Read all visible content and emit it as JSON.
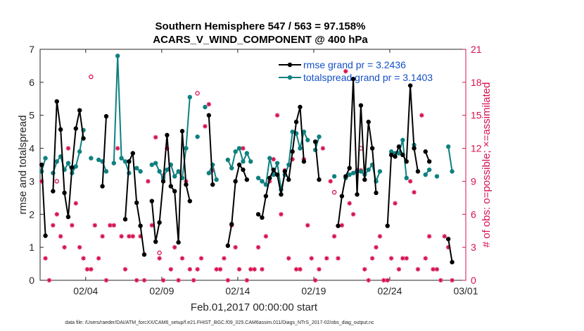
{
  "chart_data": {
    "type": "line",
    "title_line1": "Southern Hemisphere 547 / 563 = 97.158%",
    "title_line2": "ACARS_V_WIND_COMPONENT @ 400 hPa",
    "xlabel": "Feb.01,2017 00:00:00 start",
    "ylabel_left": "rmse and totalspread",
    "ylabel_right": "# of obs: o=possible; ×=assimilated",
    "footer": "data file: /Users/raeder/DAI/ATM_forcXX/CAM6_setup/f.e21.FHIST_BGC.f09_025.CAM6assim.011/Diags_NTrS_2017-02/obs_diag_output.nc",
    "xlim": [
      1,
      29
    ],
    "ylim_left": [
      0,
      7
    ],
    "ylim_right": [
      0,
      21
    ],
    "xtick_values": [
      4,
      9,
      14,
      19,
      24,
      29
    ],
    "xtick_labels": [
      "02/04",
      "02/09",
      "02/14",
      "02/19",
      "02/24",
      "03/01"
    ],
    "ytick_left": [
      "0",
      "1",
      "2",
      "3",
      "4",
      "5",
      "6",
      "7"
    ],
    "ytick_right": [
      "0",
      "3",
      "6",
      "9",
      "12",
      "15",
      "18",
      "21"
    ],
    "colors": {
      "rmse": "#000000",
      "spread": "#0f8080",
      "obs": "#d6114f",
      "legend_text": "#1450c8"
    },
    "series": [
      {
        "name": "rmse grand pr = 3.2436",
        "color": "#000000",
        "segments": [
          [
            [
              1.1,
              3.5
            ],
            [
              1.35,
              1.35
            ]
          ],
          [
            [
              1.85,
              2.7
            ],
            [
              2.1,
              5.42
            ],
            [
              2.35,
              4.57
            ],
            [
              2.6,
              2.65
            ],
            [
              2.85,
              1.92
            ],
            [
              3.1,
              3.42
            ],
            [
              3.35,
              4.6
            ],
            [
              3.6,
              5.15
            ],
            [
              3.85,
              4.3
            ]
          ],
          [
            [
              5.1,
              2.85
            ],
            [
              5.35,
              4.97
            ]
          ],
          [
            [
              6.6,
              1.85
            ],
            [
              6.85,
              3.6
            ],
            [
              7.1,
              3.85
            ],
            [
              7.35,
              2.35
            ],
            [
              7.6,
              1.65
            ],
            [
              7.85,
              0.78
            ]
          ],
          [
            [
              8.35,
              2.4
            ],
            [
              8.6,
              1.17
            ],
            [
              8.85,
              1.75
            ],
            [
              9.1,
              3.0
            ],
            [
              9.35,
              4.4
            ],
            [
              9.6,
              2.85
            ],
            [
              9.85,
              2.7
            ],
            [
              10.1,
              1.15
            ],
            [
              10.35,
              4.52
            ],
            [
              10.6,
              2.9
            ],
            [
              10.85,
              2.4
            ]
          ],
          [
            [
              12.1,
              5.0
            ],
            [
              12.35,
              2.9
            ]
          ],
          [
            [
              13.35,
              1.05
            ],
            [
              13.6,
              1.7
            ],
            [
              13.85,
              3.0
            ],
            [
              14.1,
              3.5
            ],
            [
              14.35,
              3.35
            ],
            [
              14.6,
              3.05
            ]
          ],
          [
            [
              15.35,
              2.0
            ],
            [
              15.6,
              1.9
            ],
            [
              15.85,
              2.55
            ],
            [
              16.1,
              3.1
            ],
            [
              16.35,
              3.35
            ],
            [
              16.6,
              3.2
            ],
            [
              16.85,
              2.6
            ],
            [
              17.1,
              3.3
            ],
            [
              17.35,
              3.05
            ],
            [
              17.6,
              3.9
            ],
            [
              17.85,
              4.8
            ],
            [
              18.1,
              5.25
            ],
            [
              18.35,
              3.6
            ]
          ],
          [
            [
              19.1,
              4.2
            ],
            [
              19.35,
              3.05
            ]
          ],
          [
            [
              20.6,
              1.65
            ],
            [
              20.85,
              2.55
            ],
            [
              21.1,
              3.15
            ],
            [
              21.35,
              3.4
            ],
            [
              21.6,
              6.1
            ],
            [
              21.85,
              2.6
            ],
            [
              22.1,
              5.3
            ],
            [
              22.35,
              3.05
            ],
            [
              22.6,
              4.8
            ],
            [
              22.85,
              4.0
            ],
            [
              23.1,
              2.65
            ]
          ],
          [
            [
              23.85,
              1.65
            ],
            [
              24.1,
              3.8
            ],
            [
              24.35,
              3.75
            ],
            [
              24.6,
              4.05
            ],
            [
              24.85,
              3.8
            ],
            [
              25.1,
              3.6
            ],
            [
              25.35,
              5.9
            ],
            [
              25.6,
              4.0
            ],
            [
              25.85,
              3.3
            ]
          ],
          [
            [
              26.35,
              3.9
            ],
            [
              26.6,
              3.6
            ]
          ],
          [
            [
              27.85,
              1.25
            ],
            [
              28.1,
              0.55
            ]
          ]
        ]
      },
      {
        "name": "totalspread grand pr = 3.1403",
        "color": "#0f8080",
        "segments": [
          [
            [
              1.1,
              3.3
            ],
            [
              1.35,
              3.7
            ]
          ],
          [
            [
              1.85,
              3.25
            ],
            [
              2.1,
              3.6
            ],
            [
              2.35,
              3.75
            ],
            [
              2.6,
              3.35
            ],
            [
              2.85,
              3.55
            ],
            [
              3.1,
              3.25
            ],
            [
              3.35,
              3.45
            ],
            [
              3.6,
              3.9
            ],
            [
              3.85,
              4.55
            ]
          ],
          [
            [
              4.35,
              3.7
            ]
          ],
          [
            [
              4.85,
              3.65
            ]
          ],
          [
            [
              5.1,
              3.6
            ],
            [
              5.35,
              3.3
            ]
          ],
          [
            [
              5.85,
              3.55
            ],
            [
              6.1,
              6.8
            ],
            [
              6.35,
              3.7
            ],
            [
              6.6,
              3.6
            ],
            [
              6.85,
              3.25
            ]
          ],
          [
            [
              7.35,
              3.4
            ],
            [
              7.6,
              3.3
            ]
          ],
          [
            [
              8.35,
              3.5
            ],
            [
              8.6,
              3.55
            ],
            [
              8.85,
              3.3
            ],
            [
              9.1,
              3.1
            ],
            [
              9.35,
              3.35
            ],
            [
              9.6,
              3.5
            ],
            [
              9.85,
              3.15
            ],
            [
              10.1,
              3.3
            ],
            [
              10.35,
              3.1
            ],
            [
              10.6,
              4.0
            ],
            [
              10.85,
              5.55
            ]
          ],
          [
            [
              11.35,
              4.35
            ]
          ],
          [
            [
              11.85,
              5.25
            ]
          ],
          [
            [
              12.1,
              3.25
            ],
            [
              12.35,
              3.5
            ],
            [
              12.6,
              3.05
            ]
          ],
          [
            [
              13.35,
              3.65
            ],
            [
              13.6,
              3.4
            ],
            [
              13.85,
              3.9
            ],
            [
              14.1,
              4.0
            ],
            [
              14.35,
              3.6
            ],
            [
              14.6,
              3.85
            ],
            [
              14.85,
              3.6
            ]
          ],
          [
            [
              15.35,
              3.1
            ],
            [
              15.6,
              3.0
            ],
            [
              15.85,
              2.9
            ],
            [
              16.1,
              3.7
            ],
            [
              16.35,
              3.2
            ],
            [
              16.6,
              3.55
            ],
            [
              16.85,
              2.75
            ],
            [
              17.1,
              3.2
            ],
            [
              17.35,
              3.5
            ],
            [
              17.6,
              4.5
            ],
            [
              17.85,
              4.45
            ],
            [
              18.1,
              4.0
            ],
            [
              18.35,
              4.5
            ],
            [
              18.6,
              4.25
            ]
          ],
          [
            [
              19.1,
              3.95
            ],
            [
              19.35,
              4.35
            ]
          ],
          [
            [
              20.35,
              3.15
            ]
          ],
          [
            [
              21.1,
              3.1
            ],
            [
              21.35,
              3.2
            ],
            [
              21.6,
              3.25
            ],
            [
              21.85,
              3.3
            ],
            [
              22.1,
              3.3
            ],
            [
              22.35,
              3.2
            ],
            [
              22.6,
              3.35
            ],
            [
              22.85,
              3.5
            ],
            [
              23.1,
              3.0
            ],
            [
              23.35,
              3.3
            ]
          ],
          [
            [
              24.1,
              3.9
            ],
            [
              24.35,
              3.85
            ],
            [
              24.6,
              3.85
            ],
            [
              24.85,
              4.25
            ],
            [
              25.1,
              3.1
            ]
          ],
          [
            [
              25.6,
              4.1
            ]
          ],
          [
            [
              26.35,
              3.2
            ],
            [
              26.6,
              3.35
            ]
          ],
          [
            [
              27.1,
              3.15
            ]
          ],
          [
            [
              27.85,
              4.05
            ],
            [
              28.1,
              3.3
            ]
          ]
        ]
      }
    ],
    "obs_assimilated": {
      "x": [
        1.1,
        1.35,
        1.6,
        1.85,
        2.1,
        2.35,
        2.6,
        2.85,
        3.1,
        3.35,
        3.6,
        3.85,
        4.1,
        4.35,
        4.6,
        4.85,
        5.1,
        5.35,
        5.6,
        5.85,
        6.1,
        6.35,
        6.6,
        6.85,
        7.1,
        7.35,
        7.6,
        7.85,
        8.1,
        8.35,
        8.6,
        8.85,
        9.1,
        9.35,
        9.6,
        9.85,
        10.1,
        10.35,
        10.6,
        10.85,
        11.1,
        11.35,
        11.6,
        11.85,
        12.1,
        12.35,
        12.6,
        12.85,
        13.1,
        13.35,
        13.6,
        13.85,
        14.1,
        14.35,
        14.6,
        14.85,
        15.1,
        15.35,
        15.6,
        15.85,
        16.1,
        16.35,
        16.6,
        16.85,
        17.1,
        17.35,
        17.6,
        17.85,
        18.1,
        18.35,
        18.6,
        18.85,
        19.1,
        19.35,
        19.6,
        19.85,
        20.1,
        20.35,
        20.6,
        20.85,
        21.1,
        21.35,
        21.6,
        21.85,
        22.1,
        22.35,
        22.6,
        22.85,
        23.1,
        23.35,
        23.6,
        23.85,
        24.1,
        24.35,
        24.6,
        24.85,
        25.1,
        25.35,
        25.6,
        25.85,
        26.1,
        26.35,
        26.6,
        26.85,
        27.1,
        27.35,
        27.6,
        27.85,
        28.1
      ],
      "y": [
        9,
        2,
        0,
        5,
        6,
        4,
        3,
        12,
        5,
        7,
        3,
        2,
        1,
        1,
        5,
        2,
        4,
        0,
        5,
        5,
        12,
        4,
        1,
        4,
        4,
        0,
        4,
        0,
        9,
        5,
        13,
        2,
        0,
        12,
        1,
        3,
        0,
        2,
        9,
        1,
        0,
        1,
        2,
        14,
        16,
        10,
        1,
        1,
        2,
        0,
        5,
        3,
        1,
        12,
        0,
        1,
        1,
        3,
        1,
        4,
        9,
        11,
        15,
        6,
        10,
        2,
        11,
        1,
        1,
        11,
        5,
        2,
        0,
        1,
        12,
        2,
        9,
        4,
        2,
        5,
        19,
        7,
        6,
        10,
        10,
        1,
        0,
        2,
        3,
        4,
        0,
        0,
        2,
        7,
        1,
        2,
        2,
        9,
        8,
        1,
        15,
        2,
        4,
        1,
        1,
        0,
        4,
        3,
        0
      ]
    },
    "obs_possible": {
      "x": [
        1.1,
        1.35,
        1.6,
        1.85,
        2.1,
        2.35,
        2.6,
        2.85,
        3.1,
        3.35,
        3.6,
        3.85,
        4.1,
        4.35,
        4.6,
        4.85,
        5.1,
        5.35,
        5.6,
        5.85,
        6.1,
        6.35,
        6.6,
        6.85,
        7.1,
        7.35,
        7.6,
        7.85,
        8.1,
        8.35,
        8.6,
        8.85,
        9.1,
        9.35,
        9.6,
        9.85,
        10.1,
        10.35,
        10.6,
        10.85,
        11.1,
        11.35,
        11.6,
        11.85,
        12.1,
        12.35,
        12.6,
        12.85,
        13.1,
        13.35,
        13.6,
        13.85,
        14.1,
        14.35,
        14.6,
        14.85,
        15.1,
        15.35,
        15.6,
        15.85,
        16.1,
        16.35,
        16.6,
        16.85,
        17.1,
        17.35,
        17.6,
        17.85,
        18.1,
        18.35,
        18.6,
        18.85,
        19.1,
        19.35,
        19.6,
        19.85,
        20.1,
        20.35,
        20.6,
        20.85,
        21.1,
        21.35,
        21.6,
        21.85,
        22.1,
        22.35,
        22.6,
        22.85,
        23.1,
        23.35,
        23.6,
        23.85,
        24.1,
        24.35,
        24.6,
        24.85,
        25.1,
        25.35,
        25.6,
        25.85,
        26.1,
        26.35,
        26.6,
        26.85,
        27.1,
        27.35,
        27.6,
        27.85,
        28.1
      ],
      "y": [
        9,
        2,
        0,
        5,
        9,
        4,
        3,
        12,
        5,
        7,
        3,
        2,
        1,
        18.5,
        5,
        2,
        4,
        0,
        5,
        5,
        12,
        4,
        1,
        4,
        4,
        0,
        4,
        0,
        9,
        5,
        13,
        2.5,
        9.5,
        12,
        1,
        3,
        0,
        2,
        9,
        1,
        0,
        17,
        2,
        14,
        16,
        10,
        1,
        1,
        2,
        0,
        5,
        3,
        1,
        12,
        0,
        1,
        1,
        3,
        1,
        4,
        9,
        11,
        15,
        6,
        10,
        2,
        11,
        1,
        1,
        11,
        5,
        2,
        0,
        1,
        12,
        2,
        9,
        8,
        2,
        5,
        19,
        7,
        6,
        10,
        12,
        1,
        0,
        2,
        3,
        4,
        0,
        0,
        2,
        7,
        1,
        2,
        2,
        9,
        8,
        1,
        15,
        2,
        4,
        1,
        1,
        0,
        4,
        3,
        0
      ]
    }
  }
}
